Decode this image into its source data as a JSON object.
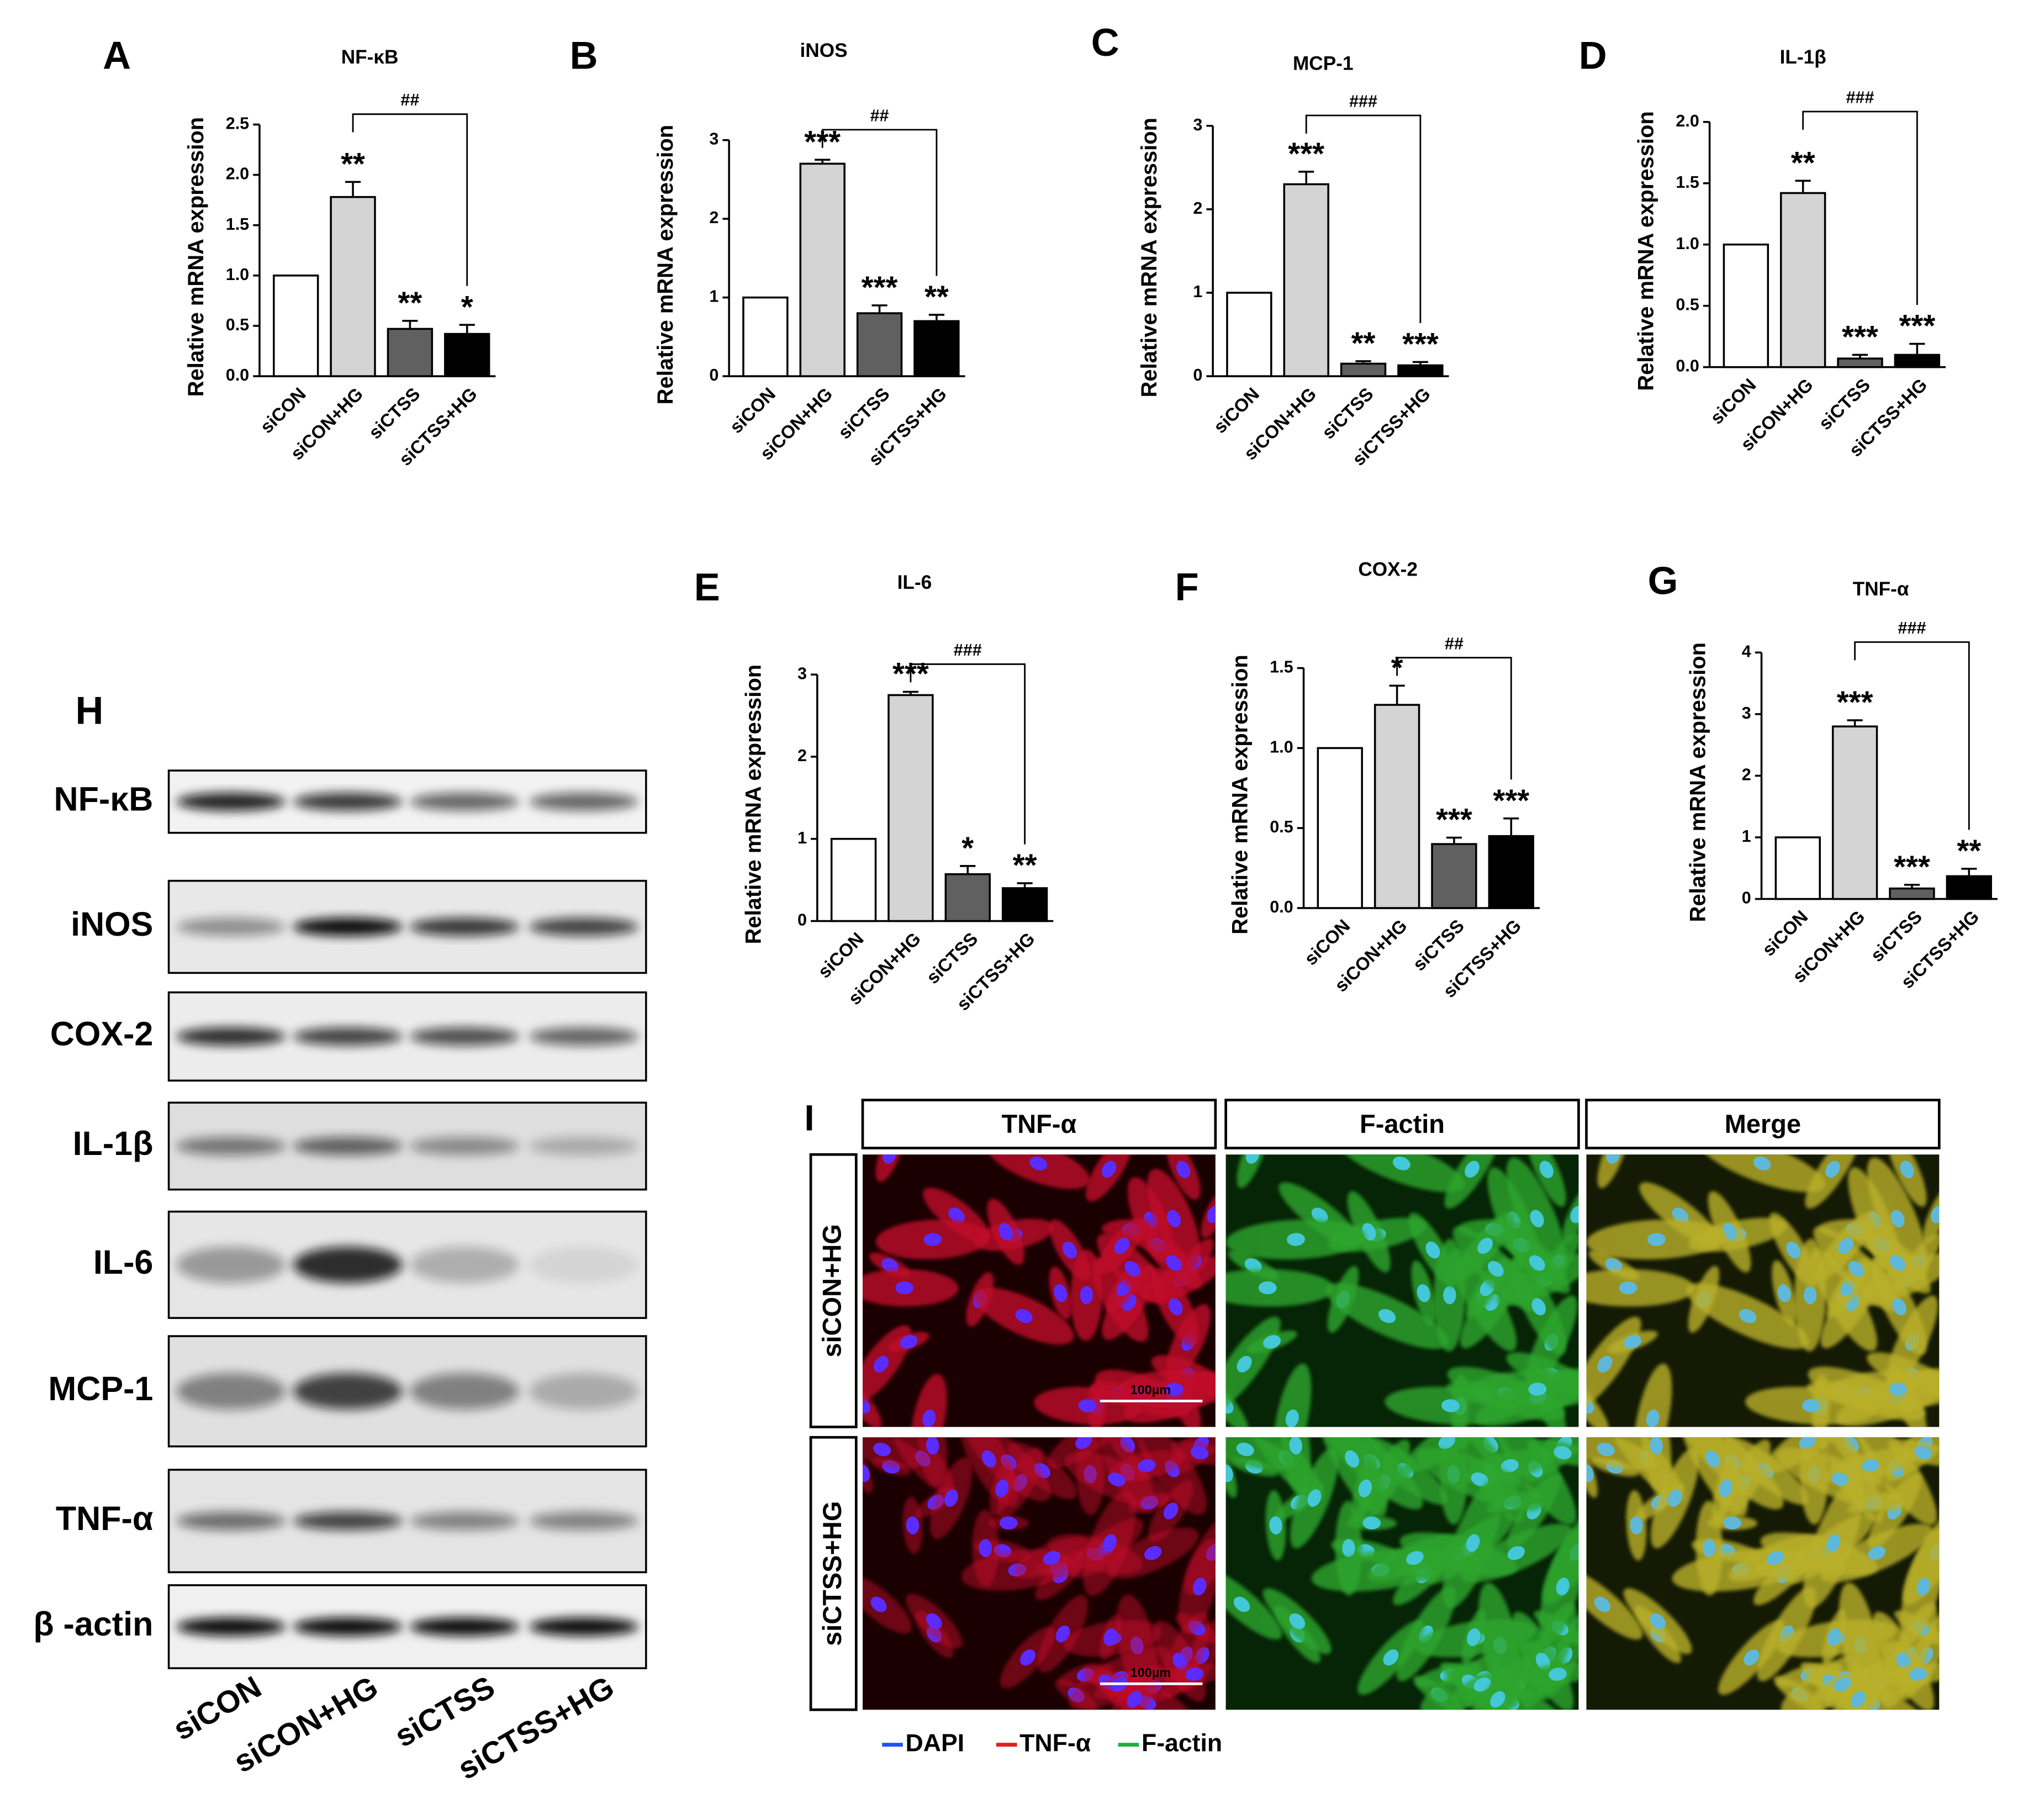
{
  "chart_data": [
    {
      "type": "bar",
      "panel": "A",
      "title": "NF-κB",
      "ylabel": "Relative  mRNA expression",
      "categories": [
        "siCON",
        "siCON+HG",
        "siCTSS",
        "siCTSS+HG"
      ],
      "values": [
        1,
        1.78,
        0.47,
        0.42
      ],
      "errors": [
        0,
        0.15,
        0.08,
        0.09
      ],
      "colors": [
        "#ffffff",
        "#d4d4d4",
        "#606060",
        "#000000"
      ],
      "significance": [
        null,
        "**",
        "**",
        "*"
      ],
      "bracket": "##",
      "ylim": [
        0,
        2.5
      ],
      "yticks": [
        {
          "value": 0,
          "label": "0.0"
        },
        {
          "value": 0.5,
          "label": "0.5"
        },
        {
          "value": 1,
          "label": "1.0"
        },
        {
          "value": 1.5,
          "label": "1.5"
        },
        {
          "value": 2,
          "label": "2.0"
        },
        {
          "value": 2.5,
          "label": "2.5"
        }
      ]
    },
    {
      "type": "bar",
      "panel": "B",
      "title": "iNOS",
      "ylabel": "Relative  mRNA expression",
      "categories": [
        "siCON",
        "siCON+HG",
        "siCTSS",
        "siCTSS+HG"
      ],
      "values": [
        1,
        2.7,
        0.8,
        0.7
      ],
      "errors": [
        0,
        0.05,
        0.1,
        0.08
      ],
      "colors": [
        "#ffffff",
        "#d4d4d4",
        "#606060",
        "#000000"
      ],
      "significance": [
        null,
        "***",
        "***",
        "**"
      ],
      "bracket": "##",
      "ylim": [
        0,
        3
      ],
      "yticks": [
        0,
        1,
        2,
        3
      ]
    },
    {
      "type": "bar",
      "panel": "C",
      "title": "MCP-1",
      "ylabel": "Relative  mRNA expression",
      "categories": [
        "siCON",
        "siCON+HG",
        "siCTSS",
        "siCTSS+HG"
      ],
      "values": [
        1,
        2.3,
        0.15,
        0.13
      ],
      "errors": [
        0,
        0.15,
        0.03,
        0.04
      ],
      "colors": [
        "#ffffff",
        "#d4d4d4",
        "#606060",
        "#000000"
      ],
      "significance": [
        null,
        "***",
        "**",
        "***"
      ],
      "bracket": "###",
      "ylim": [
        0,
        3
      ],
      "yticks": [
        0,
        1,
        2,
        3
      ]
    },
    {
      "type": "bar",
      "panel": "D",
      "title": "IL-1β",
      "ylabel": "Relative  mRNA expression",
      "categories": [
        "siCON",
        "siCON+HG",
        "siCTSS",
        "siCTSS+HG"
      ],
      "values": [
        1,
        1.42,
        0.07,
        0.1
      ],
      "errors": [
        0,
        0.1,
        0.03,
        0.09
      ],
      "colors": [
        "#ffffff",
        "#d4d4d4",
        "#606060",
        "#000000"
      ],
      "significance": [
        null,
        "**",
        "***",
        "***"
      ],
      "bracket": "###",
      "ylim": [
        0,
        2
      ],
      "yticks": [
        {
          "value": 0,
          "label": "0.0"
        },
        {
          "value": 0.5,
          "label": "0.5"
        },
        {
          "value": 1,
          "label": "1.0"
        },
        {
          "value": 1.5,
          "label": "1.5"
        },
        {
          "value": 2,
          "label": "2.0"
        }
      ]
    },
    {
      "type": "bar",
      "panel": "E",
      "title": "IL-6",
      "ylabel": "Relative  mRNA expression",
      "categories": [
        "siCON",
        "siCON+HG",
        "siCTSS",
        "siCTSS+HG"
      ],
      "values": [
        1,
        2.75,
        0.57,
        0.4
      ],
      "errors": [
        0,
        0.04,
        0.1,
        0.06
      ],
      "colors": [
        "#ffffff",
        "#d4d4d4",
        "#606060",
        "#000000"
      ],
      "significance": [
        null,
        "***",
        "*",
        "**"
      ],
      "bracket": "###",
      "ylim": [
        0,
        3
      ],
      "yticks": [
        0,
        1,
        2,
        3
      ]
    },
    {
      "type": "bar",
      "panel": "F",
      "title": "COX-2",
      "ylabel": "Relative  mRNA expression",
      "categories": [
        "siCON",
        "siCON+HG",
        "siCTSS",
        "siCTSS+HG"
      ],
      "values": [
        1,
        1.27,
        0.4,
        0.45
      ],
      "errors": [
        0,
        0.12,
        0.04,
        0.11
      ],
      "colors": [
        "#ffffff",
        "#d4d4d4",
        "#606060",
        "#000000"
      ],
      "significance": [
        null,
        "*",
        "***",
        "***"
      ],
      "bracket": "##",
      "ylim": [
        0,
        1.5
      ],
      "yticks": [
        {
          "value": 0,
          "label": "0.0"
        },
        {
          "value": 0.5,
          "label": "0.5"
        },
        {
          "value": 1,
          "label": "1.0"
        },
        {
          "value": 1.5,
          "label": "1.5"
        }
      ]
    },
    {
      "type": "bar",
      "panel": "G",
      "title": "TNF-α",
      "ylabel": "Relative  mRNA expression",
      "categories": [
        "siCON",
        "siCON+HG",
        "siCTSS",
        "siCTSS+HG"
      ],
      "values": [
        1,
        2.8,
        0.17,
        0.37
      ],
      "errors": [
        0,
        0.1,
        0.06,
        0.12
      ],
      "colors": [
        "#ffffff",
        "#d4d4d4",
        "#606060",
        "#000000"
      ],
      "significance": [
        null,
        "***",
        "***",
        "**"
      ],
      "bracket": "###",
      "ylim": [
        0,
        4
      ],
      "yticks": [
        0,
        1,
        2,
        3,
        4
      ]
    }
  ],
  "blot": {
    "panel": "H",
    "rows": [
      "NF-κB",
      "iNOS",
      "COX-2",
      "IL-1β",
      "IL-6",
      "MCP-1",
      "TNF-α",
      "β -actin"
    ],
    "lanes": [
      "siCON",
      "siCON+HG",
      "siCTSS",
      "siCTSS+HG"
    ]
  },
  "imaging": {
    "panel": "I",
    "columns": [
      "TNF-α",
      "F-actin",
      "Merge"
    ],
    "rows": [
      "siCON+HG",
      "siCTSS+HG"
    ],
    "scale_bar": "100µm",
    "legend": [
      "DAPI",
      "TNF-α",
      "F-actin"
    ]
  }
}
